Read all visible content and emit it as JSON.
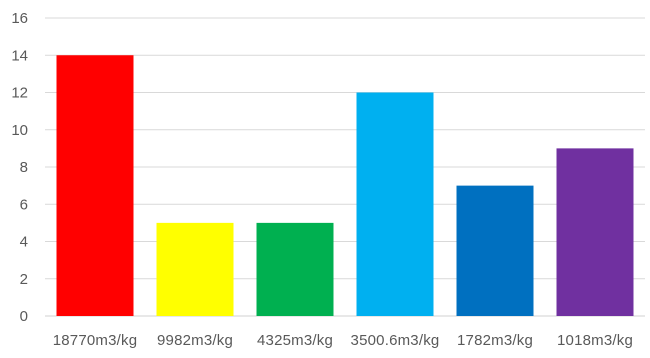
{
  "chart_data": {
    "type": "bar",
    "categories": [
      "18770m3/kg",
      "9982m3/kg",
      "4325m3/kg",
      "3500.6m3/kg",
      "1782m3/kg",
      "1018m3/kg"
    ],
    "values": [
      14,
      5,
      5,
      12,
      7,
      9
    ],
    "colors": [
      "#FF0000",
      "#FFFF00",
      "#00B050",
      "#00B0F0",
      "#0070C0",
      "#7030A0"
    ],
    "yticks": [
      "0",
      "2",
      "4",
      "6",
      "8",
      "10",
      "12",
      "14",
      "16"
    ],
    "ylim": [
      0,
      16
    ],
    "grid": true,
    "title": "",
    "xlabel": "",
    "ylabel": ""
  }
}
